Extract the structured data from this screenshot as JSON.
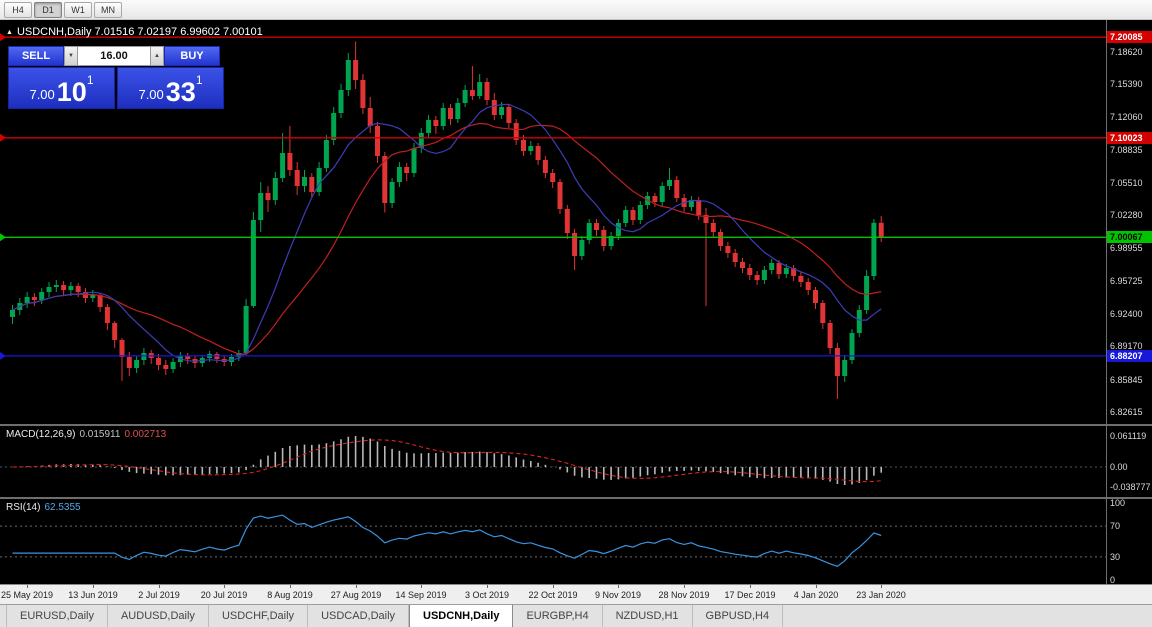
{
  "toolbar": {
    "timeframes": [
      {
        "label": "H4",
        "active": false
      },
      {
        "label": "D1",
        "active": true
      },
      {
        "label": "W1",
        "active": false
      },
      {
        "label": "MN",
        "active": false
      }
    ]
  },
  "chart": {
    "title": "USDCNH,Daily  7.01516 7.02197 6.99602 7.00101",
    "symbol": "USDCNH",
    "period": "Daily"
  },
  "icons": {
    "title_marker": "▲",
    "volume_down": "▼",
    "volume_up": "▲"
  },
  "one_click": {
    "sell_label": "SELL",
    "buy_label": "BUY",
    "volume": "16.00",
    "sell_price": {
      "small": "7.00",
      "big": "10",
      "sup": "1"
    },
    "buy_price": {
      "small": "7.00",
      "big": "33",
      "sup": "1"
    }
  },
  "colors": {
    "bull": "#00a550",
    "bear": "#e13434",
    "ma_fast": "#3d3db8",
    "ma_slow": "#c02020",
    "macd_bar": "#b8b8b8",
    "macd_signal": "#dd2222",
    "rsi_line": "#3b93e0",
    "axis_text": "#dcdcdc"
  },
  "price_axis": {
    "ticks": [
      "7.18620",
      "7.15390",
      "7.12060",
      "7.08835",
      "7.05510",
      "7.02280",
      "6.98955",
      "6.95725",
      "6.92400",
      "6.89170",
      "6.85845",
      "6.82615"
    ]
  },
  "macd": {
    "name": "MACD(12,26,9)",
    "main_value": "0.015911",
    "signal_value": "0.002713",
    "levels": [
      "0.061119",
      "0.00",
      "-0.038777"
    ]
  },
  "rsi": {
    "name": "RSI(14)",
    "value": "62.5355",
    "levels": [
      "100",
      "70",
      "30",
      "0"
    ],
    "guides": [
      70,
      30
    ]
  },
  "dates": [
    "25 May 2019",
    "13 Jun 2019",
    "2 Jul 2019",
    "20 Jul 2019",
    "8 Aug 2019",
    "27 Aug 2019",
    "14 Sep 2019",
    "3 Oct 2019",
    "22 Oct 2019",
    "9 Nov 2019",
    "28 Nov 2019",
    "17 Dec 2019",
    "4 Jan 2020",
    "23 Jan 2020"
  ],
  "tabs": {
    "items": [
      "EURUSD,Daily",
      "AUDUSD,Daily",
      "USDCHF,Daily",
      "USDCAD,Daily",
      "USDCNH,Daily",
      "EURGBP,H4",
      "NZDUSD,H1",
      "GBPUSD,H4"
    ],
    "active_index": 4
  },
  "chart_data": {
    "type": "candlestick",
    "symbol": "USDCNH",
    "timeframe": "Daily",
    "last_candle": {
      "open": 7.01516,
      "high": 7.02197,
      "low": 6.99602,
      "close": 7.00101
    },
    "ylim": [
      6.814,
      7.218
    ],
    "hlines": [
      {
        "price": 7.20085,
        "label": "7.20085",
        "color": "#d40000",
        "fg": "#ffffff"
      },
      {
        "price": 7.10023,
        "label": "7.10023",
        "color": "#d40000",
        "fg": "#ffffff"
      },
      {
        "price": 7.00067,
        "label": "7.00067",
        "color": "#00c400",
        "fg": "#000000"
      },
      {
        "price": 6.88207,
        "label": "6.88207",
        "color": "#1818d8",
        "fg": "#ffffff"
      }
    ],
    "moving_averages": [
      {
        "period": 10,
        "color_key": "ma_fast"
      },
      {
        "period": 20,
        "color_key": "ma_slow"
      }
    ],
    "indicators": {
      "macd": {
        "fast": 12,
        "slow": 26,
        "signal": 9,
        "current_main": 0.015911,
        "current_signal": 0.002713
      },
      "rsi": {
        "period": 14,
        "current": 62.5355,
        "guides": [
          70,
          30
        ]
      }
    },
    "candles": [
      [
        6.921,
        6.933,
        6.914,
        6.928
      ],
      [
        6.928,
        6.94,
        6.923,
        6.935
      ],
      [
        6.935,
        6.946,
        6.93,
        6.941
      ],
      [
        6.941,
        6.945,
        6.932,
        6.938
      ],
      [
        6.938,
        6.95,
        6.934,
        6.946
      ],
      [
        6.946,
        6.956,
        6.941,
        6.951
      ],
      [
        6.951,
        6.958,
        6.946,
        6.953
      ],
      [
        6.953,
        6.957,
        6.943,
        6.948
      ],
      [
        6.948,
        6.956,
        6.942,
        6.952
      ],
      [
        6.952,
        6.955,
        6.941,
        6.946
      ],
      [
        6.946,
        6.95,
        6.935,
        6.94
      ],
      [
        6.94,
        6.948,
        6.936,
        6.943
      ],
      [
        6.943,
        6.945,
        6.926,
        6.931
      ],
      [
        6.931,
        6.934,
        6.908,
        6.915
      ],
      [
        6.915,
        6.917,
        6.89,
        6.898
      ],
      [
        6.898,
        6.9,
        6.857,
        6.881
      ],
      [
        6.881,
        6.886,
        6.862,
        6.87
      ],
      [
        6.87,
        6.882,
        6.865,
        6.878
      ],
      [
        6.878,
        6.89,
        6.873,
        6.885
      ],
      [
        6.885,
        6.888,
        6.874,
        6.88
      ],
      [
        6.88,
        6.884,
        6.868,
        6.873
      ],
      [
        6.873,
        6.878,
        6.863,
        6.869
      ],
      [
        6.869,
        6.88,
        6.865,
        6.876
      ],
      [
        6.876,
        6.886,
        6.871,
        6.882
      ],
      [
        6.882,
        6.885,
        6.874,
        6.879
      ],
      [
        6.879,
        6.882,
        6.87,
        6.875
      ],
      [
        6.875,
        6.883,
        6.871,
        6.88
      ],
      [
        6.88,
        6.887,
        6.876,
        6.884
      ],
      [
        6.884,
        6.886,
        6.875,
        6.879
      ],
      [
        6.879,
        6.883,
        6.872,
        6.876
      ],
      [
        6.876,
        6.884,
        6.872,
        6.881
      ],
      [
        6.881,
        6.888,
        6.877,
        6.885
      ],
      [
        6.885,
        6.939,
        6.883,
        6.932
      ],
      [
        6.932,
        7.026,
        6.93,
        7.018
      ],
      [
        7.018,
        7.056,
        7.006,
        7.045
      ],
      [
        7.045,
        7.052,
        7.026,
        7.038
      ],
      [
        7.038,
        7.066,
        7.033,
        7.06
      ],
      [
        7.06,
        7.105,
        7.056,
        7.085
      ],
      [
        7.085,
        7.112,
        7.062,
        7.068
      ],
      [
        7.068,
        7.076,
        7.043,
        7.052
      ],
      [
        7.052,
        7.068,
        7.046,
        7.061
      ],
      [
        7.061,
        7.065,
        7.04,
        7.046
      ],
      [
        7.046,
        7.076,
        7.042,
        7.07
      ],
      [
        7.07,
        7.103,
        7.066,
        7.098
      ],
      [
        7.098,
        7.131,
        7.093,
        7.125
      ],
      [
        7.125,
        7.154,
        7.12,
        7.148
      ],
      [
        7.148,
        7.185,
        7.142,
        7.178
      ],
      [
        7.178,
        7.1965,
        7.149,
        7.158
      ],
      [
        7.158,
        7.164,
        7.124,
        7.13
      ],
      [
        7.13,
        7.141,
        7.105,
        7.112
      ],
      [
        7.112,
        7.116,
        7.075,
        7.082
      ],
      [
        7.082,
        7.086,
        7.0255,
        7.035
      ],
      [
        7.035,
        7.06,
        7.03,
        7.056
      ],
      [
        7.056,
        7.076,
        7.051,
        7.071
      ],
      [
        7.071,
        7.075,
        7.057,
        7.065
      ],
      [
        7.065,
        7.095,
        7.061,
        7.09
      ],
      [
        7.09,
        7.11,
        7.085,
        7.105
      ],
      [
        7.105,
        7.123,
        7.1,
        7.118
      ],
      [
        7.118,
        7.122,
        7.104,
        7.112
      ],
      [
        7.112,
        7.135,
        7.108,
        7.13
      ],
      [
        7.13,
        7.134,
        7.113,
        7.119
      ],
      [
        7.119,
        7.14,
        7.115,
        7.135
      ],
      [
        7.135,
        7.153,
        7.131,
        7.148
      ],
      [
        7.148,
        7.172,
        7.138,
        7.142
      ],
      [
        7.142,
        7.164,
        7.139,
        7.156
      ],
      [
        7.156,
        7.16,
        7.133,
        7.138
      ],
      [
        7.138,
        7.145,
        7.118,
        7.123
      ],
      [
        7.123,
        7.136,
        7.119,
        7.131
      ],
      [
        7.131,
        7.134,
        7.11,
        7.115
      ],
      [
        7.115,
        7.119,
        7.093,
        7.098
      ],
      [
        7.098,
        7.103,
        7.082,
        7.087
      ],
      [
        7.087,
        7.097,
        7.083,
        7.092
      ],
      [
        7.092,
        7.095,
        7.073,
        7.078
      ],
      [
        7.078,
        7.082,
        7.06,
        7.065
      ],
      [
        7.065,
        7.069,
        7.05,
        7.056
      ],
      [
        7.056,
        7.059,
        7.024,
        7.029
      ],
      [
        7.029,
        7.033,
        6.999,
        7.005
      ],
      [
        7.005,
        7.009,
        6.968,
        6.982
      ],
      [
        6.982,
        7.002,
        6.978,
        6.998
      ],
      [
        6.998,
        7.019,
        6.994,
        7.015
      ],
      [
        7.015,
        7.019,
        7.002,
        7.008
      ],
      [
        7.008,
        7.012,
        6.987,
        6.992
      ],
      [
        6.992,
        7.006,
        6.988,
        7.002
      ],
      [
        7.002,
        7.019,
        6.998,
        7.015
      ],
      [
        7.015,
        7.032,
        7.011,
        7.028
      ],
      [
        7.028,
        7.031,
        7.013,
        7.018
      ],
      [
        7.018,
        7.037,
        7.014,
        7.033
      ],
      [
        7.033,
        7.046,
        7.029,
        7.042
      ],
      [
        7.042,
        7.045,
        7.031,
        7.036
      ],
      [
        7.036,
        7.056,
        7.032,
        7.052
      ],
      [
        7.052,
        7.07,
        7.048,
        7.058
      ],
      [
        7.058,
        7.062,
        7.036,
        7.04
      ],
      [
        7.04,
        7.044,
        7.026,
        7.031
      ],
      [
        7.031,
        7.042,
        7.027,
        7.038
      ],
      [
        7.038,
        7.041,
        7.018,
        7.023
      ],
      [
        7.023,
        7.03,
        6.932,
        7.015
      ],
      [
        7.015,
        7.019,
        7.001,
        7.006
      ],
      [
        7.006,
        7.009,
        6.987,
        6.992
      ],
      [
        6.992,
        6.996,
        6.98,
        6.985
      ],
      [
        6.985,
        6.989,
        6.971,
        6.976
      ],
      [
        6.976,
        6.98,
        6.965,
        6.97
      ],
      [
        6.97,
        6.974,
        6.958,
        6.963
      ],
      [
        6.963,
        6.967,
        6.953,
        6.958
      ],
      [
        6.958,
        6.972,
        6.954,
        6.968
      ],
      [
        6.968,
        6.979,
        6.964,
        6.975
      ],
      [
        6.975,
        6.978,
        6.959,
        6.964
      ],
      [
        6.964,
        6.974,
        6.96,
        6.97
      ],
      [
        6.97,
        6.973,
        6.957,
        6.962
      ],
      [
        6.962,
        6.966,
        6.951,
        6.956
      ],
      [
        6.956,
        6.96,
        6.943,
        6.948
      ],
      [
        6.948,
        6.951,
        6.929,
        6.935
      ],
      [
        6.935,
        6.938,
        6.909,
        6.915
      ],
      [
        6.915,
        6.918,
        6.884,
        6.89
      ],
      [
        6.89,
        6.895,
        6.839,
        6.862
      ],
      [
        6.862,
        6.883,
        6.856,
        6.878
      ],
      [
        6.878,
        6.909,
        6.874,
        6.905
      ],
      [
        6.905,
        6.933,
        6.901,
        6.928
      ],
      [
        6.928,
        6.968,
        6.924,
        6.962
      ],
      [
        6.962,
        7.019,
        6.958,
        7.0152
      ],
      [
        7.0152,
        7.022,
        6.996,
        7.001
      ]
    ]
  }
}
